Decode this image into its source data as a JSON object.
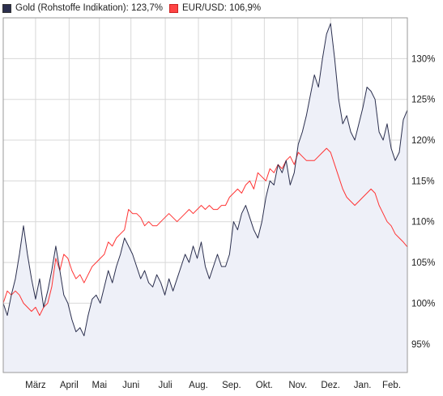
{
  "legend": {
    "gold_label": "Gold (Rohstoffe Indikation): 123,7%",
    "eurusd_label": "EUR/USD: 106,9%"
  },
  "colors": {
    "gold_line": "#2b2f4e",
    "gold_fill": "#eef0f8",
    "eurusd_line": "#ff3333",
    "grid": "#d8d8d8",
    "frame": "#999999"
  },
  "chart_data": {
    "type": "line",
    "title": "",
    "xlabel": "",
    "ylabel": "",
    "y_unit": "%",
    "ylim": [
      91.5,
      135
    ],
    "yticks": [
      {
        "value": 95,
        "label": "95%"
      },
      {
        "value": 100,
        "label": "100%"
      },
      {
        "value": 105,
        "label": "105%"
      },
      {
        "value": 110,
        "label": "110%"
      },
      {
        "value": 115,
        "label": "115%"
      },
      {
        "value": 120,
        "label": "120%"
      },
      {
        "value": 125,
        "label": "125%"
      },
      {
        "value": 130,
        "label": "130%"
      }
    ],
    "x_range": [
      0,
      100
    ],
    "xticks": [
      {
        "pos": 8,
        "label": "März"
      },
      {
        "pos": 16.3,
        "label": "April"
      },
      {
        "pos": 23.8,
        "label": "Mai"
      },
      {
        "pos": 31.6,
        "label": "Juni"
      },
      {
        "pos": 40.1,
        "label": "Juli"
      },
      {
        "pos": 48.3,
        "label": "Aug."
      },
      {
        "pos": 56.5,
        "label": "Sep."
      },
      {
        "pos": 64.6,
        "label": "Okt."
      },
      {
        "pos": 72.9,
        "label": "Nov."
      },
      {
        "pos": 81,
        "label": "Dez."
      },
      {
        "pos": 88.9,
        "label": "Jan."
      },
      {
        "pos": 96.1,
        "label": "Feb."
      }
    ],
    "grid": true,
    "legend_position": "top-left",
    "series": [
      {
        "name": "Gold (Rohstoffe Indikation)",
        "last_value": 123.7,
        "filled": true,
        "points": [
          [
            0,
            100
          ],
          [
            1,
            98.5
          ],
          [
            2,
            101
          ],
          [
            3,
            103
          ],
          [
            4,
            106
          ],
          [
            5,
            109.5
          ],
          [
            6,
            106
          ],
          [
            7,
            103
          ],
          [
            8,
            100.5
          ],
          [
            9,
            103
          ],
          [
            10,
            99.5
          ],
          [
            11,
            101.5
          ],
          [
            12,
            104
          ],
          [
            13,
            107
          ],
          [
            14,
            104
          ],
          [
            15,
            101
          ],
          [
            16,
            100
          ],
          [
            17,
            98
          ],
          [
            18,
            96.5
          ],
          [
            19,
            97
          ],
          [
            20,
            96
          ],
          [
            21,
            98.5
          ],
          [
            22,
            100.5
          ],
          [
            23,
            101
          ],
          [
            24,
            100
          ],
          [
            25,
            102
          ],
          [
            26,
            104
          ],
          [
            27,
            102.5
          ],
          [
            28,
            104.5
          ],
          [
            29,
            106
          ],
          [
            30,
            108
          ],
          [
            31,
            107
          ],
          [
            32,
            106
          ],
          [
            33,
            104.5
          ],
          [
            34,
            103
          ],
          [
            35,
            104
          ],
          [
            36,
            102.5
          ],
          [
            37,
            102
          ],
          [
            38,
            103.5
          ],
          [
            39,
            102.5
          ],
          [
            40,
            101
          ],
          [
            41,
            103
          ],
          [
            42,
            101.5
          ],
          [
            43,
            103
          ],
          [
            44,
            104.5
          ],
          [
            45,
            106
          ],
          [
            46,
            105
          ],
          [
            47,
            107
          ],
          [
            48,
            105.5
          ],
          [
            49,
            107.5
          ],
          [
            50,
            104.5
          ],
          [
            51,
            103
          ],
          [
            52,
            104.5
          ],
          [
            53,
            106
          ],
          [
            54,
            104.5
          ],
          [
            55,
            104.5
          ],
          [
            56,
            106
          ],
          [
            57,
            110
          ],
          [
            58,
            109
          ],
          [
            59,
            111
          ],
          [
            60,
            112
          ],
          [
            61,
            110.5
          ],
          [
            62,
            109
          ],
          [
            63,
            108
          ],
          [
            64,
            110
          ],
          [
            65,
            113
          ],
          [
            66,
            115
          ],
          [
            67,
            114.5
          ],
          [
            68,
            117
          ],
          [
            69,
            116
          ],
          [
            70,
            117.5
          ],
          [
            71,
            114.5
          ],
          [
            72,
            116
          ],
          [
            73,
            119.5
          ],
          [
            74,
            121
          ],
          [
            75,
            123
          ],
          [
            76,
            125.5
          ],
          [
            77,
            128
          ],
          [
            78,
            126.5
          ],
          [
            79,
            130
          ],
          [
            80,
            133
          ],
          [
            81,
            134.3
          ],
          [
            82,
            130
          ],
          [
            83,
            125
          ],
          [
            84,
            122
          ],
          [
            85,
            123
          ],
          [
            86,
            121
          ],
          [
            87,
            120
          ],
          [
            88,
            122
          ],
          [
            89,
            124
          ],
          [
            90,
            126.5
          ],
          [
            91,
            126
          ],
          [
            92,
            125
          ],
          [
            93,
            121
          ],
          [
            94,
            120
          ],
          [
            95,
            122
          ],
          [
            96,
            119
          ],
          [
            97,
            117.5
          ],
          [
            98,
            118.5
          ],
          [
            99,
            122.5
          ],
          [
            100,
            123.7
          ]
        ]
      },
      {
        "name": "EUR/USD",
        "last_value": 106.9,
        "filled": false,
        "points": [
          [
            0,
            100
          ],
          [
            1,
            101.5
          ],
          [
            2,
            101
          ],
          [
            3,
            101.5
          ],
          [
            4,
            101
          ],
          [
            5,
            100
          ],
          [
            6,
            99.5
          ],
          [
            7,
            99
          ],
          [
            8,
            99.5
          ],
          [
            9,
            98.5
          ],
          [
            10,
            99.5
          ],
          [
            11,
            100
          ],
          [
            12,
            102
          ],
          [
            13,
            105.5
          ],
          [
            14,
            104
          ],
          [
            15,
            106
          ],
          [
            16,
            105.5
          ],
          [
            17,
            104
          ],
          [
            18,
            103
          ],
          [
            19,
            103.5
          ],
          [
            20,
            102.5
          ],
          [
            21,
            103.5
          ],
          [
            22,
            104.5
          ],
          [
            23,
            105
          ],
          [
            24,
            105.5
          ],
          [
            25,
            106
          ],
          [
            26,
            107.5
          ],
          [
            27,
            107
          ],
          [
            28,
            108
          ],
          [
            29,
            108.5
          ],
          [
            30,
            109
          ],
          [
            31,
            111.5
          ],
          [
            32,
            111
          ],
          [
            33,
            111
          ],
          [
            34,
            110.5
          ],
          [
            35,
            109.5
          ],
          [
            36,
            110
          ],
          [
            37,
            109.5
          ],
          [
            38,
            109.5
          ],
          [
            39,
            110
          ],
          [
            40,
            110.5
          ],
          [
            41,
            111
          ],
          [
            42,
            110.5
          ],
          [
            43,
            110
          ],
          [
            44,
            110.5
          ],
          [
            45,
            111
          ],
          [
            46,
            111.5
          ],
          [
            47,
            111
          ],
          [
            48,
            111.5
          ],
          [
            49,
            112
          ],
          [
            50,
            111.5
          ],
          [
            51,
            112
          ],
          [
            52,
            111.5
          ],
          [
            53,
            111.5
          ],
          [
            54,
            112
          ],
          [
            55,
            112
          ],
          [
            56,
            113
          ],
          [
            57,
            113.5
          ],
          [
            58,
            114
          ],
          [
            59,
            113.5
          ],
          [
            60,
            114.5
          ],
          [
            61,
            115
          ],
          [
            62,
            114
          ],
          [
            63,
            116
          ],
          [
            64,
            115.5
          ],
          [
            65,
            115
          ],
          [
            66,
            116.5
          ],
          [
            67,
            116
          ],
          [
            68,
            117
          ],
          [
            69,
            116.5
          ],
          [
            70,
            117.5
          ],
          [
            71,
            118
          ],
          [
            72,
            117
          ],
          [
            73,
            118.5
          ],
          [
            74,
            118
          ],
          [
            75,
            117.5
          ],
          [
            76,
            117.5
          ],
          [
            77,
            117.5
          ],
          [
            78,
            118
          ],
          [
            79,
            118.5
          ],
          [
            80,
            119
          ],
          [
            81,
            118.5
          ],
          [
            82,
            117
          ],
          [
            83,
            115.5
          ],
          [
            84,
            114
          ],
          [
            85,
            113
          ],
          [
            86,
            112.5
          ],
          [
            87,
            112
          ],
          [
            88,
            112.5
          ],
          [
            89,
            113
          ],
          [
            90,
            113.5
          ],
          [
            91,
            114
          ],
          [
            92,
            113.5
          ],
          [
            93,
            112
          ],
          [
            94,
            111
          ],
          [
            95,
            110
          ],
          [
            96,
            109.5
          ],
          [
            97,
            108.5
          ],
          [
            98,
            108
          ],
          [
            99,
            107.5
          ],
          [
            100,
            106.9
          ]
        ]
      }
    ]
  }
}
